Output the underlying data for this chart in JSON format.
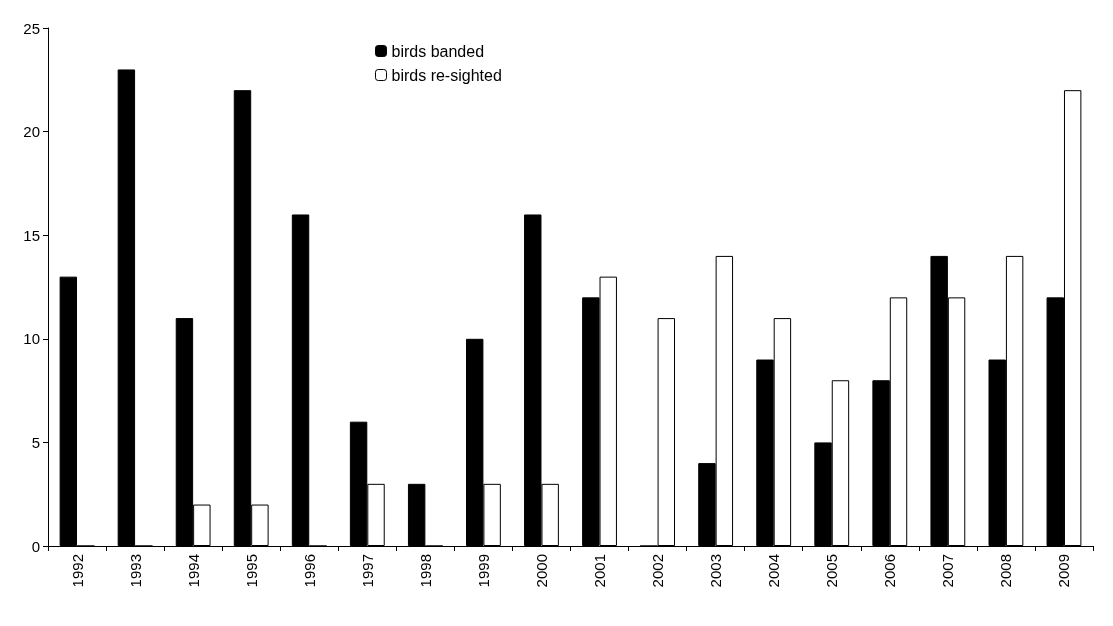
{
  "chart_data": {
    "type": "bar",
    "categories": [
      "1992",
      "1993",
      "1994",
      "1995",
      "1996",
      "1997",
      "1998",
      "1999",
      "2000",
      "2001",
      "2002",
      "2003",
      "2004",
      "2005",
      "2006",
      "2007",
      "2008",
      "2009"
    ],
    "series": [
      {
        "name": "birds banded",
        "color": "#000000",
        "values": [
          13,
          23,
          11,
          22,
          16,
          6,
          3,
          10,
          16,
          12,
          0,
          4,
          9,
          5,
          8,
          14,
          9,
          12
        ]
      },
      {
        "name": "birds re-sighted",
        "color": "#ffffff",
        "values": [
          0,
          0,
          2,
          2,
          0,
          3,
          0,
          3,
          3,
          13,
          11,
          14,
          11,
          8,
          12,
          12,
          14,
          22
        ]
      }
    ],
    "ylim": [
      0,
      25
    ],
    "yticks": [
      0,
      5,
      10,
      15,
      20,
      25
    ],
    "grid": false,
    "legend": "top"
  }
}
